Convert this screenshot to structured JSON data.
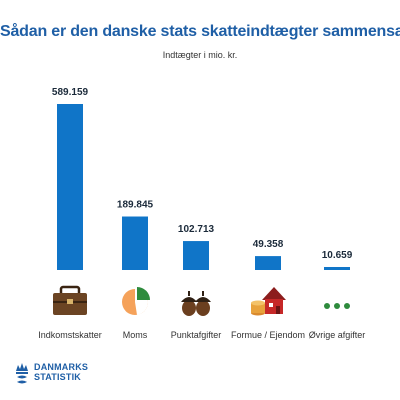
{
  "header": {
    "title": "Sådan er den danske stats skatteindtægter sammensat",
    "subtitle": "Indtægter i mio. kr."
  },
  "colors": {
    "bar": "#1075c8",
    "title": "#1f5fa6",
    "label": "#1b2a3a"
  },
  "chart_data": {
    "type": "bar",
    "title": "Sådan er den danske stats skatteindtægter sammensat",
    "subtitle": "Indtægter i mio. kr.",
    "xlabel": "",
    "ylabel": "",
    "categories": [
      "Indkomstskatter",
      "Moms",
      "Punktafgifter",
      "Formue / Ejendom",
      "Øvrige afgifter"
    ],
    "values": [
      589159,
      189845,
      102713,
      49358,
      10659
    ],
    "value_labels": [
      "589.159",
      "189.845",
      "102.713",
      "49.358",
      "10.659"
    ],
    "icons": [
      "briefcase-icon",
      "pie-chart-icon",
      "acorn-icon",
      "house-coins-icon",
      "ellipsis-icon"
    ],
    "ylim": [
      0,
      589159
    ],
    "grid": false,
    "legend": "none"
  },
  "brand": {
    "line1": "DANMARKS",
    "line2": "STATISTIK"
  }
}
